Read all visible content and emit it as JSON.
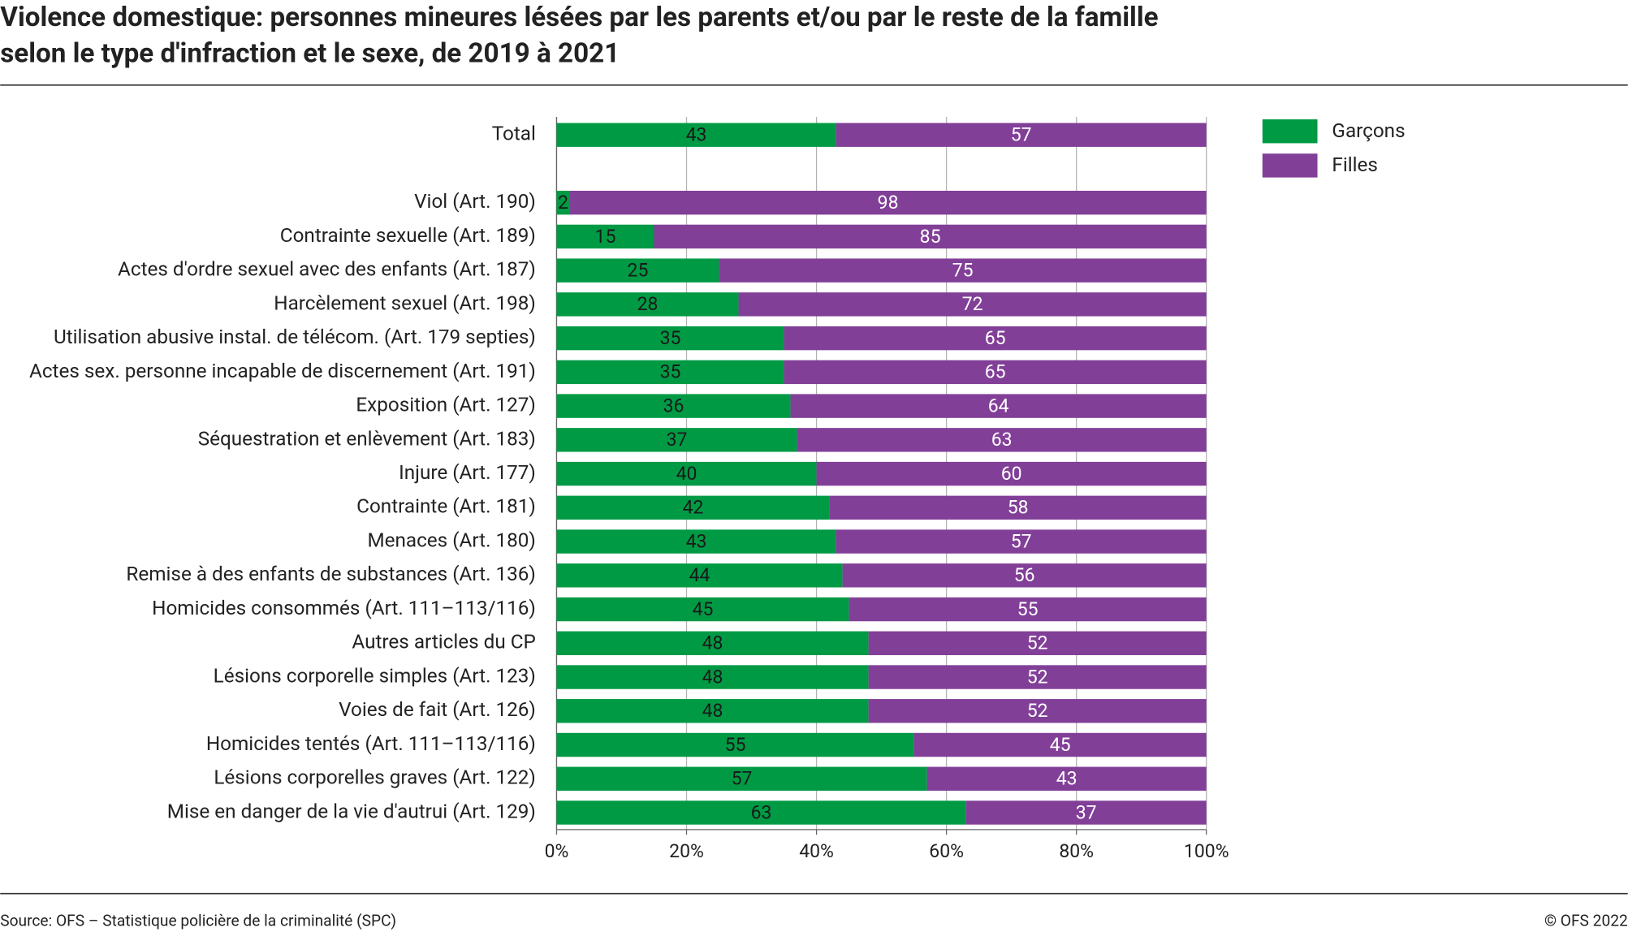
{
  "chart_data": {
    "type": "stacked-barh",
    "title": [
      "Violence domestique: personnes mineures lésées par les parents et/ou par le reste de la famille",
      "selon le type d'infraction et le sexe, de 2019 à 2021"
    ],
    "categories": [
      "Total",
      null,
      "Viol (Art. 190)",
      "Contrainte sexuelle (Art. 189)",
      "Actes d'ordre sexuel avec des enfants (Art. 187)",
      "Harcèlement sexuel (Art. 198)",
      "Utilisation abusive instal. de télécom. (Art. 179 septies)",
      "Actes sex. personne incapable de discernement (Art. 191)",
      "Exposition (Art. 127)",
      "Séquestration et enlèvement (Art. 183)",
      "Injure (Art. 177)",
      "Contrainte (Art. 181)",
      "Menaces (Art. 180)",
      "Remise à des enfants de substances (Art. 136)",
      "Homicides consommés (Art. 111–113/116)",
      "Autres articles du CP",
      "Lésions corporelle simples (Art. 123)",
      "Voies de fait  (Art. 126)",
      "Homicides tentés (Art. 111–113/116)",
      "Lésions corporelles graves (Art. 122)",
      "Mise en danger de la vie d'autrui (Art. 129)"
    ],
    "series": [
      {
        "name": "Garçons",
        "color": "#009a44",
        "values": [
          43,
          null,
          2,
          15,
          25,
          28,
          35,
          35,
          36,
          37,
          40,
          42,
          43,
          44,
          45,
          48,
          48,
          48,
          55,
          57,
          63
        ]
      },
      {
        "name": "Filles",
        "color": "#823f98",
        "values": [
          57,
          null,
          98,
          85,
          75,
          72,
          65,
          65,
          64,
          63,
          60,
          58,
          57,
          56,
          55,
          52,
          52,
          52,
          45,
          43,
          37
        ]
      }
    ],
    "xlim": [
      0,
      100
    ],
    "xticks": [
      {
        "value": 0,
        "label": "0%"
      },
      {
        "value": 20,
        "label": "20%"
      },
      {
        "value": 40,
        "label": "40%"
      },
      {
        "value": 60,
        "label": "60%"
      },
      {
        "value": 80,
        "label": "80%"
      },
      {
        "value": 100,
        "label": "100%"
      }
    ],
    "grid": true,
    "legend": "top-right",
    "source": "Source: OFS – Statistique policière de la criminalité (SPC)",
    "copyright": "© OFS 2022"
  }
}
